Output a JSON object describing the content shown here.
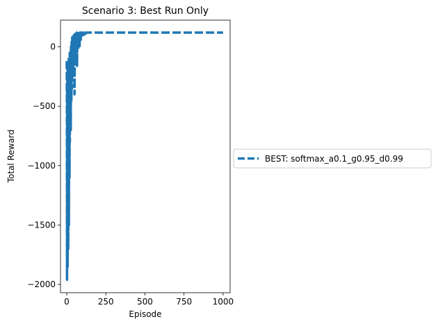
{
  "chart_data": {
    "type": "line",
    "title": "Scenario 3: Best Run Only",
    "xlabel": "Episode",
    "ylabel": "Total Reward",
    "xlim": [
      -40,
      1045
    ],
    "ylim": [
      -2070,
      225
    ],
    "xticks": [
      0,
      250,
      500,
      750,
      1000
    ],
    "yticks": [
      -2000,
      -1500,
      -1000,
      -500,
      0
    ],
    "ytick_labels": [
      "−2000",
      "−1500",
      "−1000",
      "−500",
      "0"
    ],
    "grid": false,
    "legend_position": "outside-right",
    "series": [
      {
        "name": "BEST: softmax_a0.1_g0.95_d0.99",
        "color": "#1f77b4",
        "line_style": "dashed",
        "x": [
          0,
          1,
          2,
          3,
          4,
          5,
          6,
          7,
          8,
          9,
          10,
          11,
          12,
          13,
          14,
          15,
          16,
          17,
          18,
          19,
          20,
          21,
          22,
          23,
          24,
          25,
          26,
          27,
          28,
          29,
          30,
          31,
          32,
          33,
          34,
          35,
          36,
          37,
          38,
          39,
          40,
          41,
          42,
          43,
          44,
          45,
          46,
          47,
          48,
          49,
          50,
          52,
          54,
          56,
          58,
          60,
          62,
          64,
          66,
          68,
          70,
          72,
          74,
          76,
          78,
          80,
          82,
          84,
          86,
          88,
          90,
          92,
          94,
          96,
          98,
          100,
          103,
          106,
          109,
          112,
          115,
          118,
          121,
          124,
          127,
          130,
          135,
          140,
          145,
          150,
          160,
          170,
          180,
          190,
          200,
          220,
          250,
          300,
          400,
          500,
          600,
          700,
          800,
          900,
          1000
        ],
        "y": [
          -120,
          -450,
          -1960,
          -300,
          -1600,
          -200,
          -1850,
          -350,
          -1400,
          -150,
          -1700,
          -250,
          -1200,
          -100,
          -1500,
          -300,
          -900,
          -200,
          -1100,
          -50,
          -800,
          -150,
          -600,
          -250,
          -400,
          -100,
          -700,
          0,
          -300,
          -150,
          -450,
          50,
          -200,
          -100,
          -350,
          80,
          -150,
          -50,
          -250,
          60,
          -100,
          20,
          -200,
          90,
          -50,
          30,
          -150,
          100,
          -80,
          40,
          -400,
          80,
          -100,
          110,
          -50,
          90,
          -30,
          120,
          -160,
          100,
          10,
          110,
          -20,
          115,
          50,
          105,
          -10,
          120,
          80,
          110,
          60,
          120,
          90,
          115,
          100,
          120,
          110,
          120,
          100,
          120,
          115,
          120,
          110,
          120,
          118,
          120,
          120,
          120,
          120,
          120,
          120,
          120,
          120,
          120,
          120,
          120,
          120,
          120,
          120,
          120,
          120,
          120,
          120,
          120,
          120
        ]
      }
    ]
  }
}
